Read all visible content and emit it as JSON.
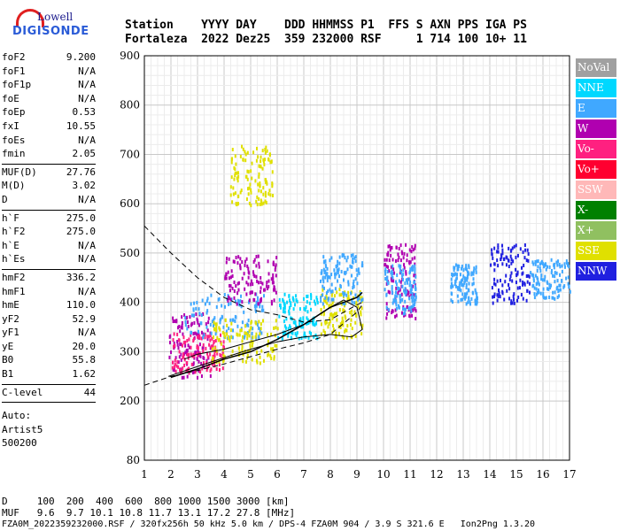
{
  "logo": {
    "name": "Lowell",
    "brand": "DIGISONDE"
  },
  "header": {
    "line1": "Station    YYYY DAY    DDD HHMMSS P1  FFS S AXN PPS IGA PS",
    "line2": "Fortaleza  2022 Dez25  359 232000 RSF     1 714 100 10+ 11"
  },
  "params": [
    {
      "k": "foF2",
      "v": "9.200"
    },
    {
      "k": "foF1",
      "v": "N/A"
    },
    {
      "k": "foF1p",
      "v": "N/A"
    },
    {
      "k": "foE",
      "v": "N/A"
    },
    {
      "k": "foEp",
      "v": "0.53"
    },
    {
      "k": "fxI",
      "v": "10.55"
    },
    {
      "k": "foEs",
      "v": "N/A"
    },
    {
      "k": "fmin",
      "v": "2.05"
    }
  ],
  "params2": [
    {
      "k": "MUF(D)",
      "v": "27.76"
    },
    {
      "k": "M(D)",
      "v": "3.02"
    },
    {
      "k": "D",
      "v": "N/A"
    }
  ],
  "params3": [
    {
      "k": "h`F",
      "v": "275.0"
    },
    {
      "k": "h`F2",
      "v": "275.0"
    },
    {
      "k": "h`E",
      "v": "N/A"
    },
    {
      "k": "h`Es",
      "v": "N/A"
    }
  ],
  "params4": [
    {
      "k": "hmF2",
      "v": "336.2"
    },
    {
      "k": "hmF1",
      "v": "N/A"
    },
    {
      "k": "hmE",
      "v": "110.0"
    },
    {
      "k": "yF2",
      "v": "52.9"
    },
    {
      "k": "yF1",
      "v": "N/A"
    },
    {
      "k": "yE",
      "v": "20.0"
    },
    {
      "k": "B0",
      "v": "55.8"
    },
    {
      "k": "B1",
      "v": "1.62"
    }
  ],
  "clevel": {
    "k": "C-level",
    "v": "44"
  },
  "auto": {
    "l1": "Auto:",
    "l2": "Artist5",
    "l3": "500200"
  },
  "legend": [
    {
      "label": "NoVal",
      "color": "#a0a0a0"
    },
    {
      "label": "NNE",
      "color": "#00d8ff"
    },
    {
      "label": "E",
      "color": "#40a8ff"
    },
    {
      "label": "W",
      "color": "#b000b0"
    },
    {
      "label": "Vo-",
      "color": "#ff2080"
    },
    {
      "label": "Vo+",
      "color": "#ff0030"
    },
    {
      "label": "SSW",
      "color": "#ffb8b8"
    },
    {
      "label": "X-",
      "color": "#008000"
    },
    {
      "label": "X+",
      "color": "#90c060"
    },
    {
      "label": "SSE",
      "color": "#e0e000"
    },
    {
      "label": "NNW",
      "color": "#2020e0"
    }
  ],
  "bottom": {
    "d": "D     100  200  400  600  800 1000 1500 3000 [km]",
    "muf": "MUF   9.6  9.7 10.1 10.8 11.7 13.1 17.2 27.8 [MHz]",
    "footer": "FZA0M_2022359232000.RSF / 320fx256h 50 kHz 5.0 km / DPS-4 FZA0M 904 / 3.9 S 321.6 E   Ion2Png 1.3.20"
  },
  "chart_data": {
    "type": "scatter",
    "xlim": [
      1,
      17
    ],
    "ylim": [
      80,
      900
    ],
    "xticks": [
      1,
      2,
      3,
      4,
      5,
      6,
      7,
      8,
      9,
      10,
      11,
      12,
      13,
      14,
      15,
      16,
      17
    ],
    "yticks": [
      80,
      200,
      300,
      400,
      500,
      600,
      700,
      800,
      900
    ],
    "grid": true,
    "clusters": [
      {
        "x": [
          1.9,
          3.5
        ],
        "y": [
          250,
          380
        ],
        "color": "#b000b0"
      },
      {
        "x": [
          2.0,
          4.0
        ],
        "y": [
          260,
          340
        ],
        "color": "#ff2080"
      },
      {
        "x": [
          2.5,
          5.5
        ],
        "y": [
          330,
          420
        ],
        "color": "#40a8ff"
      },
      {
        "x": [
          3.5,
          6.0
        ],
        "y": [
          280,
          370
        ],
        "color": "#e0e000"
      },
      {
        "x": [
          4.0,
          6.0
        ],
        "y": [
          400,
          500
        ],
        "color": "#b000b0"
      },
      {
        "x": [
          4.2,
          5.8
        ],
        "y": [
          600,
          720
        ],
        "color": "#e0e000"
      },
      {
        "x": [
          6.0,
          7.5
        ],
        "y": [
          330,
          420
        ],
        "color": "#00d8ff"
      },
      {
        "x": [
          7.6,
          9.2
        ],
        "y": [
          330,
          430
        ],
        "color": "#e0e000"
      },
      {
        "x": [
          7.6,
          9.2
        ],
        "y": [
          400,
          500
        ],
        "color": "#40a8ff"
      },
      {
        "x": [
          10.0,
          11.2
        ],
        "y": [
          370,
          520
        ],
        "color": "#b000b0"
      },
      {
        "x": [
          10.0,
          11.2
        ],
        "y": [
          380,
          480
        ],
        "color": "#40a8ff"
      },
      {
        "x": [
          12.5,
          13.5
        ],
        "y": [
          400,
          480
        ],
        "color": "#40a8ff"
      },
      {
        "x": [
          14.0,
          15.5
        ],
        "y": [
          400,
          520
        ],
        "color": "#2020e0"
      },
      {
        "x": [
          15.5,
          17.0
        ],
        "y": [
          410,
          490
        ],
        "color": "#40a8ff"
      }
    ],
    "traces": {
      "dashed_upper": [
        [
          1,
          555
        ],
        [
          2,
          500
        ],
        [
          3,
          450
        ],
        [
          4,
          410
        ],
        [
          5,
          385
        ],
        [
          6,
          375
        ],
        [
          7,
          360
        ],
        [
          8,
          365
        ],
        [
          9,
          395
        ],
        [
          9.2,
          400
        ]
      ],
      "dashed_lower": [
        [
          1,
          232
        ],
        [
          2,
          250
        ],
        [
          3,
          262
        ],
        [
          4,
          275
        ],
        [
          5,
          290
        ],
        [
          6,
          305
        ],
        [
          7,
          318
        ],
        [
          8,
          335
        ],
        [
          9,
          380
        ],
        [
          9.2,
          395
        ]
      ],
      "solid_profile": [
        [
          1.9,
          250
        ],
        [
          3,
          270
        ],
        [
          4,
          288
        ],
        [
          5,
          305
        ],
        [
          6,
          320
        ],
        [
          7,
          330
        ],
        [
          8,
          335
        ],
        [
          8.8,
          330
        ],
        [
          9.2,
          345
        ],
        [
          9,
          390
        ],
        [
          8.5,
          405
        ],
        [
          8,
          390
        ],
        [
          7,
          355
        ],
        [
          6,
          335
        ],
        [
          5,
          320
        ],
        [
          4,
          305
        ],
        [
          3,
          295
        ],
        [
          2.5,
          285
        ]
      ],
      "solid_trace": [
        [
          2,
          248
        ],
        [
          3,
          265
        ],
        [
          4,
          285
        ],
        [
          5,
          300
        ],
        [
          6,
          325
        ],
        [
          7,
          355
        ],
        [
          8,
          390
        ],
        [
          9,
          410
        ],
        [
          9.2,
          420
        ]
      ]
    }
  }
}
